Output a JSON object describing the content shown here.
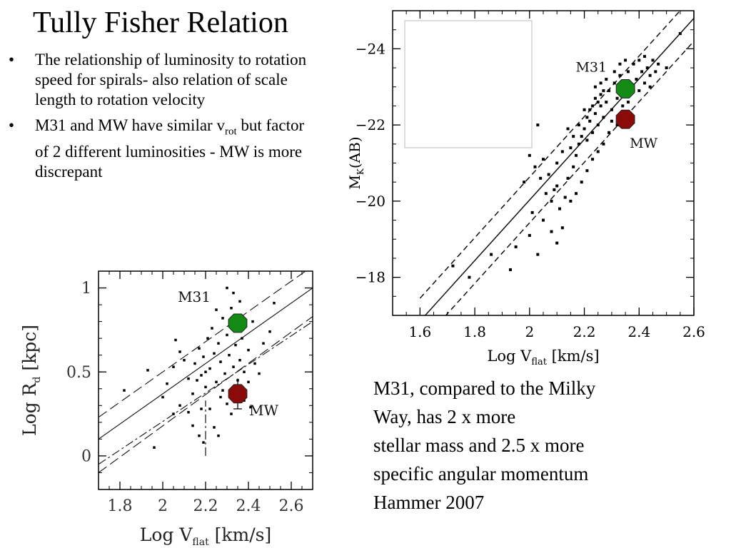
{
  "slide": {
    "title": "Tully Fisher Relation",
    "bullets": [
      {
        "text": "The relationship of luminosity to rotation speed for spirals- also relation of scale length to rotation velocity",
        "sub": ""
      },
      {
        "text": "M31 and MW have similar v",
        "sub": "rot",
        "tail": " but factor of 2 different luminosities - MW is more discrepant"
      }
    ],
    "caption_lines": [
      "M31, compared to the Milky",
      "Way, has 2 x more",
      "stellar mass and 2.5 x more",
      "specific angular momentum",
      "Hammer 2007"
    ]
  },
  "colors": {
    "m31_marker": "#138a13",
    "mw_marker": "#8b0a0a",
    "background": "#ffffff"
  },
  "chart_data": [
    {
      "type": "scatter",
      "id": "mk-vs-vflat",
      "title": "",
      "xlabel_main": "Log V",
      "xlabel_sub": "flat",
      "xlabel_tail": " [km/s]",
      "ylabel_main": "M",
      "ylabel_sub": "K",
      "ylabel_tail": "(AB)",
      "xlim": [
        1.5,
        2.6
      ],
      "ylim": [
        -17,
        -25
      ],
      "xticks": [
        1.6,
        1.8,
        2,
        2.2,
        2.4,
        2.6
      ],
      "xtick_labels": [
        "1.6",
        "1.8",
        "2",
        "2.2",
        "2.4",
        "2.6"
      ],
      "yticks": [
        -24,
        -22,
        -20,
        -18
      ],
      "ytick_labels": [
        "−24",
        "−22",
        "−20",
        "−18"
      ],
      "fit_lines": [
        {
          "style": "solid",
          "x": [
            1.6,
            2.6
          ],
          "y": [
            -16.85,
            -24.8
          ]
        },
        {
          "style": "dashed",
          "x": [
            1.6,
            2.6
          ],
          "y": [
            -17.45,
            -25.4
          ]
        },
        {
          "style": "dashed",
          "x": [
            1.6,
            2.6
          ],
          "y": [
            -16.25,
            -24.2
          ]
        }
      ],
      "highlights": [
        {
          "name": "M31",
          "label": "M31",
          "x": 2.35,
          "y": -22.95,
          "color": "#138a13"
        },
        {
          "name": "MW",
          "label": "MW",
          "x": 2.35,
          "y": -22.15,
          "color": "#8b0a0a"
        }
      ],
      "points": [
        [
          1.72,
          -18.3
        ],
        [
          1.78,
          -18.0
        ],
        [
          1.86,
          -18.6
        ],
        [
          1.93,
          -18.2
        ],
        [
          1.95,
          -18.8
        ],
        [
          2.0,
          -19.1
        ],
        [
          2.03,
          -18.6
        ],
        [
          2.05,
          -19.5
        ],
        [
          2.08,
          -19.2
        ],
        [
          2.1,
          -18.9
        ],
        [
          2.12,
          -19.3
        ],
        [
          2.11,
          -19.8
        ],
        [
          2.09,
          -20.3
        ],
        [
          2.06,
          -20.2
        ],
        [
          2.04,
          -20.6
        ],
        [
          2.02,
          -20.9
        ],
        [
          2.05,
          -21.1
        ],
        [
          2.07,
          -20.7
        ],
        [
          2.1,
          -20.4
        ],
        [
          2.13,
          -20.1
        ],
        [
          2.14,
          -20.6
        ],
        [
          2.16,
          -20.9
        ],
        [
          2.17,
          -21.2
        ],
        [
          2.15,
          -21.4
        ],
        [
          2.12,
          -21.3
        ],
        [
          2.1,
          -21.0
        ],
        [
          2.18,
          -21.5
        ],
        [
          2.19,
          -21.7
        ],
        [
          2.2,
          -21.9
        ],
        [
          2.21,
          -21.6
        ],
        [
          2.22,
          -22.1
        ],
        [
          2.23,
          -21.8
        ],
        [
          2.24,
          -22.3
        ],
        [
          2.25,
          -22.0
        ],
        [
          2.26,
          -22.5
        ],
        [
          2.27,
          -22.2
        ],
        [
          2.28,
          -22.6
        ],
        [
          2.22,
          -22.4
        ],
        [
          2.24,
          -22.7
        ],
        [
          2.26,
          -22.8
        ],
        [
          2.29,
          -22.9
        ],
        [
          2.3,
          -22.4
        ],
        [
          2.31,
          -23.1
        ],
        [
          2.32,
          -22.7
        ],
        [
          2.33,
          -23.3
        ],
        [
          2.34,
          -22.5
        ],
        [
          2.36,
          -23.4
        ],
        [
          2.37,
          -23.0
        ],
        [
          2.38,
          -23.6
        ],
        [
          2.39,
          -23.2
        ],
        [
          2.4,
          -23.7
        ],
        [
          2.41,
          -23.4
        ],
        [
          2.42,
          -23.8
        ],
        [
          2.43,
          -23.5
        ],
        [
          2.44,
          -23.3
        ],
        [
          2.45,
          -23.7
        ],
        [
          2.46,
          -23.4
        ],
        [
          2.47,
          -23.6
        ],
        [
          2.5,
          -23.5
        ],
        [
          2.55,
          -24.4
        ],
        [
          2.35,
          -23.7
        ],
        [
          2.33,
          -23.6
        ],
        [
          2.31,
          -23.4
        ],
        [
          2.28,
          -23.2
        ],
        [
          2.27,
          -22.9
        ],
        [
          2.25,
          -22.6
        ],
        [
          2.23,
          -22.5
        ],
        [
          2.21,
          -22.2
        ],
        [
          2.2,
          -22.4
        ],
        [
          2.18,
          -22.0
        ],
        [
          2.16,
          -21.7
        ],
        [
          2.14,
          -21.9
        ],
        [
          2.3,
          -22.1
        ],
        [
          2.32,
          -22.0
        ],
        [
          2.34,
          -22.8
        ],
        [
          2.29,
          -21.8
        ],
        [
          2.27,
          -21.5
        ],
        [
          2.25,
          -21.3
        ],
        [
          2.23,
          -21.1
        ],
        [
          2.21,
          -20.8
        ],
        [
          2.19,
          -20.5
        ],
        [
          2.17,
          -20.2
        ],
        [
          2.15,
          -20.0
        ],
        [
          2.0,
          -21.2
        ],
        [
          2.03,
          -22.0
        ],
        [
          2.08,
          -20.0
        ],
        [
          2.38,
          -22.9
        ],
        [
          2.4,
          -22.9
        ],
        [
          2.42,
          -23.1
        ],
        [
          2.44,
          -23.0
        ],
        [
          2.36,
          -22.6
        ],
        [
          2.26,
          -23.1
        ],
        [
          2.24,
          -23.0
        ],
        [
          1.98,
          -20.5
        ],
        [
          2.01,
          -19.7
        ]
      ]
    },
    {
      "type": "scatter",
      "id": "rd-vs-vflat",
      "title": "",
      "xlabel_main": "Log V",
      "xlabel_sub": "flat",
      "xlabel_tail": " [km/s]",
      "ylabel_main": "Log R",
      "ylabel_sub": "d",
      "ylabel_tail": " [kpc]",
      "xlim": [
        1.7,
        2.7
      ],
      "ylim": [
        -0.2,
        1.1
      ],
      "xticks": [
        1.8,
        2,
        2.2,
        2.4,
        2.6
      ],
      "xtick_labels": [
        "1.8",
        "2",
        "2.2",
        "2.4",
        "2.6"
      ],
      "yticks": [
        0,
        0.5,
        1
      ],
      "ytick_labels": [
        "0",
        "0.5",
        "1"
      ],
      "fit_lines": [
        {
          "style": "solid",
          "x": [
            1.7,
            2.7
          ],
          "y": [
            0.1,
            1.0
          ]
        },
        {
          "style": "longdash",
          "x": [
            1.7,
            2.7
          ],
          "y": [
            0.23,
            1.13
          ]
        },
        {
          "style": "longdash",
          "x": [
            1.7,
            2.7
          ],
          "y": [
            -0.1,
            0.83
          ]
        },
        {
          "style": "dashdot",
          "x": [
            1.7,
            2.7
          ],
          "y": [
            -0.05,
            0.8
          ]
        }
      ],
      "vertical_line": {
        "x": 2.2,
        "y": [
          0.0,
          0.33
        ],
        "style": "dashdot"
      },
      "highlights": [
        {
          "name": "M31",
          "label": "M31",
          "x": 2.35,
          "y": 0.79,
          "color": "#138a13"
        },
        {
          "name": "MW",
          "label": "MW",
          "x": 2.35,
          "y": 0.37,
          "color": "#8b0a0a",
          "errorbar": [
            0.28,
            0.46
          ]
        }
      ],
      "points": [
        [
          1.82,
          0.39
        ],
        [
          1.93,
          0.51
        ],
        [
          1.96,
          0.05
        ],
        [
          2.0,
          0.35
        ],
        [
          2.02,
          0.43
        ],
        [
          2.05,
          0.53
        ],
        [
          2.06,
          0.69
        ],
        [
          2.08,
          0.62
        ],
        [
          2.1,
          0.57
        ],
        [
          2.12,
          0.46
        ],
        [
          2.14,
          0.37
        ],
        [
          2.15,
          0.55
        ],
        [
          2.17,
          0.64
        ],
        [
          2.18,
          0.48
        ],
        [
          2.2,
          0.41
        ],
        [
          2.19,
          0.59
        ],
        [
          2.21,
          0.7
        ],
        [
          2.22,
          0.52
        ],
        [
          2.23,
          0.76
        ],
        [
          2.24,
          0.61
        ],
        [
          2.25,
          0.44
        ],
        [
          2.26,
          0.67
        ],
        [
          2.27,
          0.56
        ],
        [
          2.28,
          0.82
        ],
        [
          2.29,
          0.49
        ],
        [
          2.3,
          0.72
        ],
        [
          2.31,
          0.6
        ],
        [
          2.32,
          0.88
        ],
        [
          2.33,
          0.53
        ],
        [
          2.34,
          0.66
        ],
        [
          2.36,
          0.57
        ],
        [
          2.37,
          0.7
        ],
        [
          2.38,
          0.5
        ],
        [
          2.4,
          0.63
        ],
        [
          2.42,
          0.8
        ],
        [
          2.43,
          0.55
        ],
        [
          2.45,
          0.49
        ],
        [
          2.47,
          0.67
        ],
        [
          2.5,
          0.74
        ],
        [
          2.52,
          0.91
        ],
        [
          2.3,
          1.0
        ],
        [
          2.33,
          0.97
        ],
        [
          2.36,
          0.92
        ],
        [
          2.25,
          0.87
        ],
        [
          2.22,
          0.28
        ],
        [
          2.24,
          0.17
        ],
        [
          2.26,
          0.12
        ],
        [
          2.28,
          0.39
        ],
        [
          2.3,
          0.31
        ],
        [
          2.17,
          0.12
        ],
        [
          2.19,
          0.08
        ],
        [
          2.14,
          0.18
        ],
        [
          2.12,
          0.26
        ],
        [
          2.18,
          0.28
        ],
        [
          2.32,
          0.25
        ],
        [
          2.27,
          0.35
        ],
        [
          2.4,
          0.44
        ],
        [
          2.16,
          0.45
        ],
        [
          2.2,
          0.5
        ],
        [
          2.08,
          0.3
        ],
        [
          2.05,
          0.25
        ],
        [
          2.35,
          0.45
        ],
        [
          2.38,
          0.33
        ],
        [
          2.41,
          0.29
        ]
      ]
    }
  ]
}
